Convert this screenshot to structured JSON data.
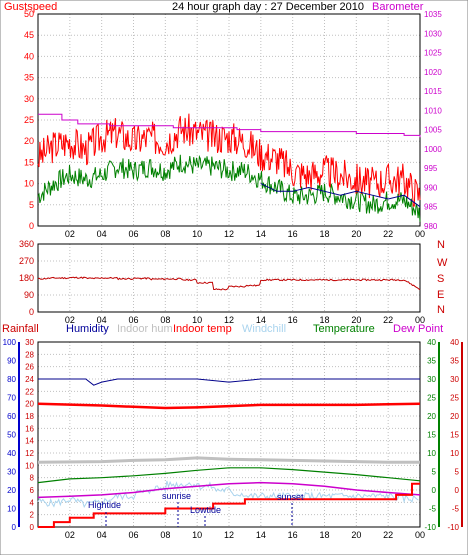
{
  "title": "24 hour graph day : 27 December 2010",
  "colors": {
    "gust": "#ff0000",
    "wind": "#008000",
    "humidity_line": "#00008b",
    "barometer": "#cc00cc",
    "bearing": "#c00000",
    "rain": "#ff0000",
    "indoor_hum": "#c0c0c0",
    "indoor_temp": "#ff0000",
    "windchill": "#aad4ee",
    "temperature": "#008000",
    "dewpoint": "#cc00cc",
    "humidity_label": "#000099",
    "grid": "#c0c0c0",
    "axis_left_blue": "#0000cc",
    "axis_right_green": "#008000",
    "axis_right_red": "#cc0000",
    "event": "#000099"
  },
  "chart_data": [
    {
      "type": "line",
      "title": "24 hour graph day : 27 December 2010",
      "x_ticks": [
        "02",
        "04",
        "06",
        "08",
        "10",
        "12",
        "14",
        "16",
        "18",
        "20",
        "22",
        "00"
      ],
      "left_axis": {
        "label": "Gustspeed",
        "ylim": [
          0,
          50
        ],
        "ticks": [
          "0",
          "5",
          "10",
          "15",
          "20",
          "25",
          "30",
          "35",
          "40",
          "45",
          "50"
        ]
      },
      "right_axis": {
        "label": "Barometer",
        "ylim": [
          980,
          1035
        ],
        "ticks": [
          "980",
          "985",
          "990",
          "995",
          "1000",
          "1005",
          "1010",
          "1015",
          "1020",
          "1025",
          "1030",
          "1035"
        ]
      },
      "series": [
        {
          "name": "Gustspeed",
          "x": [
            0.0,
            1.0,
            2.0,
            3.0,
            4.0,
            5.0,
            6.0,
            7.0,
            8.0,
            9.0,
            10.0,
            11.0,
            12.0,
            13.0,
            14.0,
            15.0,
            16.0,
            17.0,
            18.0,
            19.0,
            20.0,
            21.0,
            22.0,
            23.0,
            24.0
          ],
          "values": [
            16,
            19,
            20,
            18,
            21,
            22,
            20,
            21,
            20,
            23,
            22,
            21,
            21,
            20,
            17,
            16,
            13,
            12,
            13,
            12,
            11,
            10,
            11,
            11,
            7
          ]
        },
        {
          "x": [
            0.0,
            1.0,
            2.0,
            3.0,
            4.0,
            5.0,
            6.0,
            7.0,
            8.0,
            9.0,
            10.0,
            11.0,
            12.0,
            13.0,
            14.0,
            15.0,
            16.0,
            17.0,
            18.0,
            19.0,
            20.0,
            21.0,
            22.0,
            23.0,
            24.0
          ],
          "values": [
            7,
            10,
            12,
            11,
            12,
            14,
            13,
            14,
            13,
            15,
            14,
            14,
            13,
            13,
            11,
            9,
            7,
            7,
            8,
            7,
            6,
            5,
            6,
            6,
            3
          ]
        },
        {
          "name": "Barometer",
          "x": [
            0.0,
            1.5,
            2.5,
            4.5,
            8.5,
            12.5,
            14.0,
            17.0,
            20.0,
            23.0,
            24.0
          ],
          "values": [
            1009.0,
            1007.5,
            1006.5,
            1006.0,
            1005.5,
            1005.0,
            1004.5,
            1004.5,
            1004.0,
            1003.5,
            1003.0
          ]
        },
        {
          "x": [
            14.0,
            15.0,
            16.0,
            17.0,
            18.0,
            19.0,
            20.0,
            21.0,
            22.0,
            23.0,
            24.0
          ],
          "values": [
            991,
            989,
            989,
            990,
            989,
            988,
            989,
            988,
            987,
            988,
            985
          ]
        }
      ]
    },
    {
      "type": "line",
      "x_ticks": [
        "02",
        "04",
        "06",
        "08",
        "10",
        "12",
        "14",
        "16",
        "18",
        "20",
        "22",
        "00"
      ],
      "left_axis": {
        "ylim": [
          0,
          360
        ],
        "ticks": [
          "0",
          "90",
          "180",
          "270",
          "360"
        ]
      },
      "right_axis_labels": [
        "N",
        "W",
        "S",
        "E",
        "N"
      ],
      "series": [
        {
          "x": [
            0.0,
            2.0,
            4.0,
            6.0,
            8.0,
            10.0,
            12.0,
            14.0,
            16.0,
            18.0,
            19.0,
            20.0,
            21.0,
            22.0,
            23.0,
            24.0
          ],
          "values": [
            175,
            180,
            182,
            178,
            180,
            176,
            178,
            174,
            175,
            170,
            155,
            120,
            135,
            140,
            170,
            120
          ]
        }
      ]
    },
    {
      "type": "line",
      "x_ticks": [
        "02",
        "04",
        "06",
        "08",
        "10",
        "12",
        "14",
        "16",
        "18",
        "20",
        "22",
        "00"
      ],
      "legend": [
        "Rainfall",
        "Humidity",
        "Indoor hum",
        "Indoor temp",
        "Windchill",
        "Temperature",
        "Dew Point"
      ],
      "axes": {
        "humidity_ticks": [
          "0",
          "10",
          "20",
          "30",
          "40",
          "50",
          "60",
          "70",
          "80",
          "90",
          "100"
        ],
        "rain_ticks": [
          "0",
          "2",
          "4",
          "6",
          "8",
          "10",
          "12",
          "14",
          "16",
          "18",
          "20",
          "22",
          "24",
          "26",
          "28",
          "30"
        ],
        "temp_green_ticks": [
          "-10",
          "-5",
          "0",
          "5",
          "10",
          "15",
          "20",
          "25",
          "30",
          "35",
          "40"
        ],
        "temp_red_ticks": [
          "-10",
          "-5",
          "0",
          "5",
          "10",
          "15",
          "20",
          "25",
          "30",
          "35",
          "40"
        ],
        "rain_ylim": [
          0,
          30
        ],
        "temp_ylim": [
          -10,
          40
        ]
      },
      "annotations": {
        "hightide": "Hightide",
        "sunrise": "sunrise",
        "lowtide": "Lowtide",
        "sunset": "sunset"
      },
      "series": [
        {
          "name": "Humidity",
          "x": [
            0.0,
            3.0,
            3.5,
            4.0,
            5.0,
            8.0,
            10.0,
            12.0,
            14.0,
            18.0,
            22.0,
            24.0
          ],
          "values": [
            24,
            24,
            23,
            23.5,
            24,
            24,
            24,
            23.5,
            24,
            24,
            24,
            24
          ]
        },
        {
          "name": "Indoor temp",
          "x": [
            0.0,
            4.0,
            6.0,
            8.0,
            10.0,
            12.0,
            14.0,
            16.0,
            18.0,
            20.0,
            22.0,
            24.0
          ],
          "values": [
            20,
            19.7,
            19.5,
            19.3,
            19.4,
            19.6,
            19.8,
            19.8,
            19.8,
            19.8,
            19.9,
            20.0
          ]
        },
        {
          "name": "Indoor hum",
          "x": [
            0.0,
            4.0,
            6.0,
            8.0,
            10.0,
            12.0,
            14.0,
            16.0,
            18.0,
            20.0,
            22.0,
            24.0
          ],
          "values": [
            10.5,
            10.6,
            10.8,
            10.9,
            11.2,
            11.0,
            10.9,
            10.8,
            10.7,
            10.6,
            10.5,
            10.5
          ]
        },
        {
          "name": "Temperature",
          "x": [
            0.0,
            2.0,
            4.0,
            6.0,
            8.0,
            10.0,
            12.0,
            14.0,
            16.0,
            18.0,
            20.0,
            22.0,
            24.0
          ],
          "values": [
            7.2,
            7.8,
            8.0,
            8.3,
            8.7,
            9.2,
            9.6,
            9.6,
            9.3,
            8.9,
            8.5,
            8.0,
            7.5
          ]
        },
        {
          "name": "Windchill",
          "x": [
            0.0,
            1.0,
            2.0,
            3.0,
            4.0,
            6.0,
            8.0,
            10.0,
            12.0,
            14.0,
            16.0,
            18.0,
            20.0,
            22.0,
            24.0
          ],
          "values": [
            4.2,
            3.8,
            4.5,
            3.6,
            4.0,
            5.0,
            5.6,
            6.3,
            6.9,
            7.0,
            6.6,
            6.0,
            5.4,
            5.0,
            4.6
          ]
        },
        {
          "name": "Dew Point",
          "x": [
            0.0,
            2.0,
            4.0,
            6.0,
            8.0,
            10.0,
            12.0,
            14.0,
            16.0,
            18.0,
            20.0,
            22.0,
            24.0
          ],
          "values": [
            4.8,
            5.0,
            5.2,
            5.6,
            6.2,
            6.6,
            7.0,
            7.2,
            7.0,
            6.6,
            6.0,
            5.6,
            5.2
          ]
        },
        {
          "name": "Rainfall",
          "x": [
            0.0,
            1.0,
            1.0,
            2.0,
            2.0,
            3.5,
            3.5,
            8.0,
            8.0,
            11.0,
            11.0,
            13.0,
            13.0,
            22.5,
            22.5,
            23.5,
            23.5,
            24.0
          ],
          "values": [
            0,
            0,
            0.8,
            0.8,
            1.5,
            1.5,
            2.2,
            2.2,
            3.0,
            3.0,
            3.8,
            3.8,
            4.5,
            4.5,
            5.2,
            5.2,
            7.0,
            7.0
          ]
        }
      ]
    }
  ]
}
